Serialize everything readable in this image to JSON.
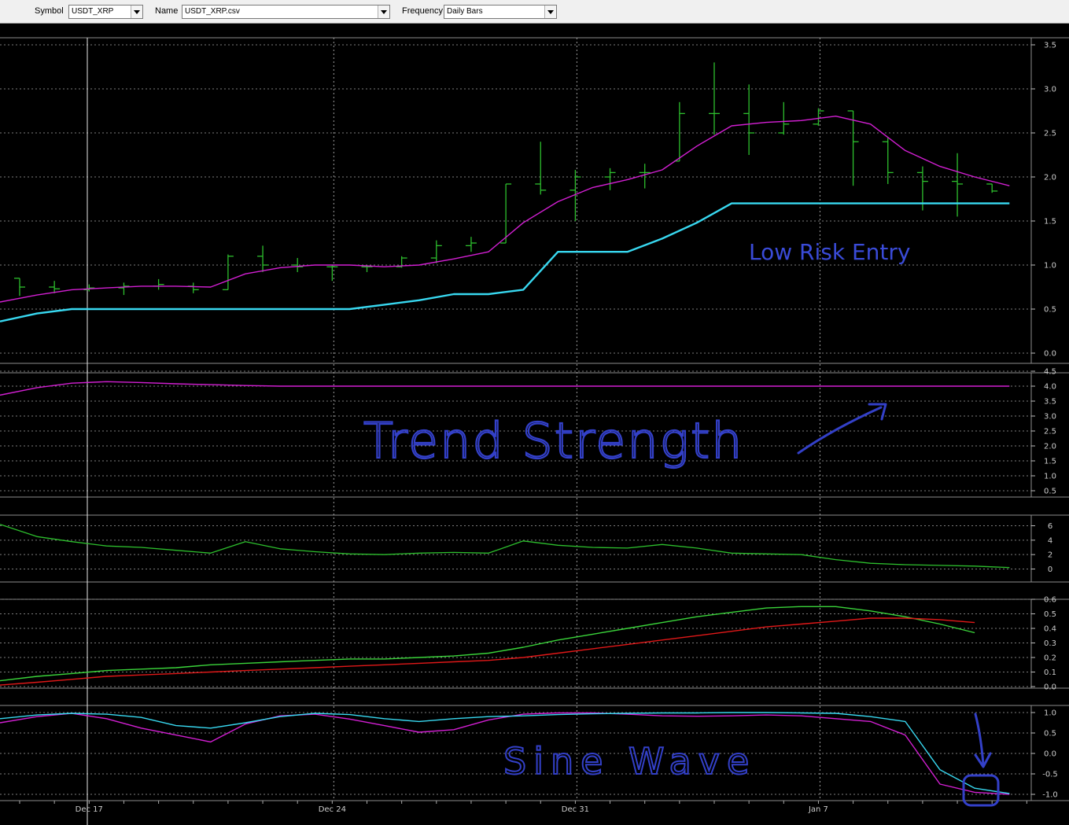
{
  "toolbar": {
    "symbol_label": "Symbol",
    "symbol_value": "USDT_XRP",
    "name_label": "Name",
    "name_value": "USDT_XRP.csv",
    "frequency_label": "Frequency",
    "frequency_value": "Daily Bars"
  },
  "annotations": {
    "low_risk_entry": "Low Risk Entry",
    "trend_strength": "Trend Strength",
    "sine_wave": "Sine Wave"
  },
  "colors": {
    "bars": "#2dbf2d",
    "ma": "#d21fd2",
    "support": "#38d8f0",
    "handwriting": "#3340c8",
    "annotation_text": "#3a4bd8",
    "red_line": "#e01818",
    "grid": "#7c7c7c"
  },
  "chart_data": [
    {
      "type": "ohlc",
      "panel": "price",
      "x_labels": [
        "Dec 17",
        "Dec 24",
        "Dec 31",
        "Jan 7"
      ],
      "x_label_index": [
        2,
        9,
        16,
        23
      ],
      "ylim": [
        0,
        3.5
      ],
      "yticks": [
        "0.0",
        "0.5",
        "1.0",
        "1.5",
        "2.0",
        "2.5",
        "3.0",
        "3.5"
      ],
      "ohlc": [
        [
          0.85,
          0.85,
          0.65,
          0.75
        ],
        [
          0.75,
          0.82,
          0.68,
          0.73
        ],
        [
          0.72,
          0.78,
          0.7,
          0.74
        ],
        [
          0.74,
          0.8,
          0.66,
          0.76
        ],
        [
          0.76,
          0.84,
          0.72,
          0.78
        ],
        [
          0.76,
          0.8,
          0.68,
          0.72
        ],
        [
          0.72,
          1.12,
          0.72,
          1.1
        ],
        [
          1.1,
          1.22,
          0.92,
          1.0
        ],
        [
          1.0,
          1.08,
          0.92,
          0.98
        ],
        [
          0.98,
          1.0,
          0.82,
          0.98
        ],
        [
          0.98,
          1.0,
          0.92,
          0.98
        ],
        [
          0.98,
          1.1,
          0.97,
          1.08
        ],
        [
          1.08,
          1.28,
          1.02,
          1.22
        ],
        [
          1.22,
          1.32,
          1.15,
          1.25
        ],
        [
          1.25,
          1.92,
          1.25,
          1.92
        ],
        [
          1.92,
          2.4,
          1.8,
          1.85
        ],
        [
          1.85,
          2.08,
          1.5,
          2.0
        ],
        [
          2.0,
          2.1,
          1.85,
          2.05
        ],
        [
          2.05,
          2.15,
          1.87,
          2.05
        ],
        [
          2.18,
          2.85,
          2.18,
          2.72
        ],
        [
          2.72,
          3.3,
          2.48,
          2.72
        ],
        [
          2.72,
          3.05,
          2.25,
          2.5
        ],
        [
          2.5,
          2.85,
          2.48,
          2.6
        ],
        [
          2.6,
          2.78,
          2.58,
          2.75
        ],
        [
          2.75,
          2.75,
          1.9,
          2.4
        ],
        [
          2.4,
          2.45,
          1.92,
          2.05
        ],
        [
          2.05,
          2.12,
          1.62,
          1.95
        ],
        [
          1.95,
          2.27,
          1.55,
          1.92
        ],
        [
          1.92,
          1.92,
          1.82,
          1.84
        ]
      ],
      "ma": [
        0.58,
        0.66,
        0.72,
        0.74,
        0.76,
        0.76,
        0.75,
        0.9,
        0.97,
        1.0,
        1.0,
        0.98,
        1.0,
        1.07,
        1.15,
        1.48,
        1.72,
        1.88,
        1.97,
        2.08,
        2.35,
        2.58,
        2.62,
        2.64,
        2.69,
        2.6,
        2.3,
        2.12,
        2.0,
        1.9
      ],
      "support": [
        0.36,
        0.45,
        0.5,
        0.5,
        0.5,
        0.5,
        0.5,
        0.5,
        0.5,
        0.5,
        0.5,
        0.55,
        0.6,
        0.67,
        0.67,
        0.72,
        1.15,
        1.15,
        1.15,
        1.3,
        1.48,
        1.7,
        1.7,
        1.7,
        1.7,
        1.7,
        1.7,
        1.7,
        1.7,
        1.7
      ]
    },
    {
      "type": "line",
      "panel": "trend-strength",
      "ylim": [
        0.25,
        4.5
      ],
      "yticks": [
        "0.5",
        "1.0",
        "1.5",
        "2.0",
        "2.5",
        "3.0",
        "3.5",
        "4.0",
        "4.5"
      ],
      "series": [
        {
          "values": [
            3.7,
            3.95,
            4.1,
            4.15,
            4.12,
            4.08,
            4.05,
            4.02,
            4.0,
            4.0,
            4.0,
            4.0,
            4.0,
            4.0,
            4.0,
            4.0,
            4.0,
            4.0,
            4.0,
            4.0,
            4.0,
            4.0,
            4.0,
            4.0,
            4.0,
            4.0,
            4.0,
            4.0,
            4.0,
            4.0
          ]
        }
      ]
    },
    {
      "type": "line",
      "panel": "oscillator",
      "ylim": [
        -1.5,
        8
      ],
      "yticks": [
        "0",
        "2",
        "4",
        "6"
      ],
      "series": [
        {
          "values": [
            6.2,
            4.5,
            3.8,
            3.2,
            3.0,
            2.6,
            2.2,
            3.8,
            2.8,
            2.4,
            2.1,
            2.0,
            2.2,
            2.3,
            2.2,
            3.9,
            3.3,
            3.0,
            2.9,
            3.4,
            2.9,
            2.2,
            2.1,
            2.0,
            1.3,
            0.8,
            0.6,
            0.5,
            0.4,
            0.2
          ]
        }
      ]
    },
    {
      "type": "line",
      "panel": "moving-averages",
      "ylim": [
        -0.05,
        0.65
      ],
      "yticks": [
        "0.0",
        "0.1",
        "0.2",
        "0.3",
        "0.4",
        "0.5",
        "0.6"
      ],
      "series": [
        {
          "values": [
            0.04,
            0.07,
            0.09,
            0.11,
            0.12,
            0.13,
            0.15,
            0.16,
            0.17,
            0.18,
            0.19,
            0.19,
            0.2,
            0.21,
            0.23,
            0.27,
            0.32,
            0.36,
            0.4,
            0.44,
            0.48,
            0.51,
            0.54,
            0.55,
            0.55,
            0.52,
            0.48,
            0.43,
            0.37
          ]
        },
        {
          "values": [
            0.01,
            0.03,
            0.05,
            0.07,
            0.08,
            0.09,
            0.1,
            0.11,
            0.12,
            0.13,
            0.14,
            0.15,
            0.16,
            0.17,
            0.18,
            0.2,
            0.23,
            0.26,
            0.29,
            0.32,
            0.35,
            0.38,
            0.41,
            0.43,
            0.45,
            0.47,
            0.47,
            0.46,
            0.44
          ]
        }
      ]
    },
    {
      "type": "line",
      "panel": "sine-wave",
      "ylim": [
        -1.12,
        1.18
      ],
      "yticks": [
        "-1.0",
        "-0.5",
        "0.0",
        "0.5",
        "1.0"
      ],
      "series": [
        {
          "values": [
            0.75,
            0.9,
            0.98,
            0.85,
            0.62,
            0.45,
            0.28,
            0.72,
            0.92,
            0.96,
            0.84,
            0.68,
            0.52,
            0.58,
            0.82,
            0.96,
            0.99,
            0.99,
            0.96,
            0.92,
            0.91,
            0.92,
            0.94,
            0.92,
            0.85,
            0.78,
            0.45,
            -0.75,
            -0.95,
            -1.0
          ]
        },
        {
          "values": [
            0.85,
            0.94,
            0.98,
            0.96,
            0.88,
            0.68,
            0.62,
            0.75,
            0.9,
            0.98,
            0.95,
            0.85,
            0.78,
            0.85,
            0.9,
            0.92,
            0.95,
            0.97,
            0.98,
            0.99,
            0.99,
            1.0,
            1.0,
            0.99,
            0.98,
            0.9,
            0.78,
            -0.4,
            -0.85,
            -0.98
          ]
        }
      ]
    }
  ]
}
